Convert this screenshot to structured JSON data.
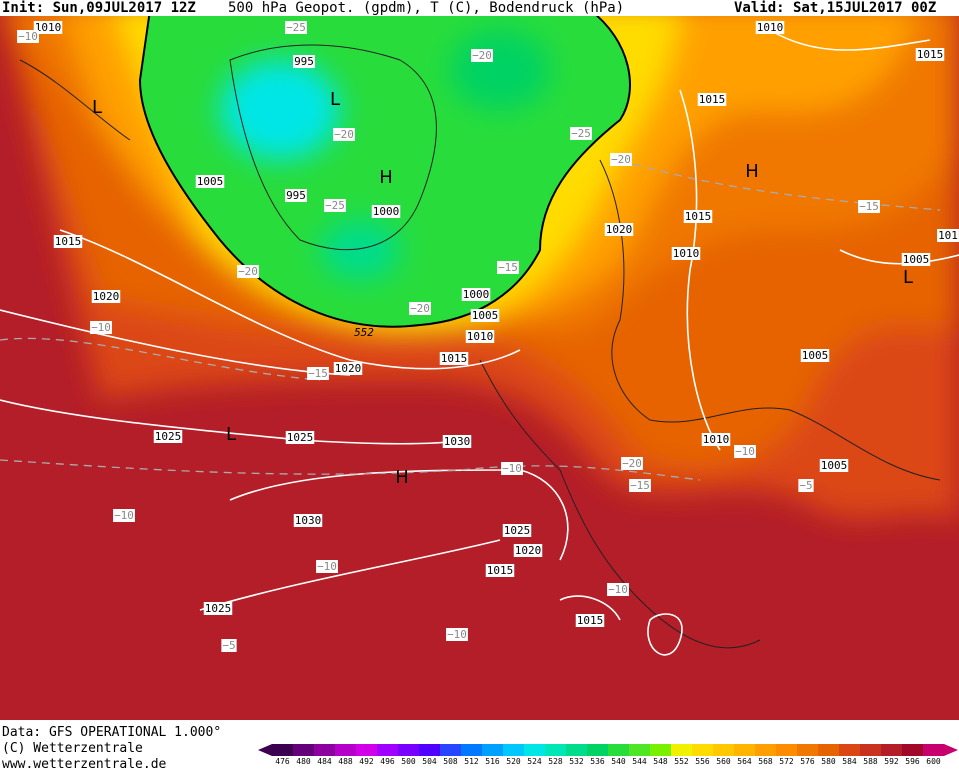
{
  "header": {
    "init": "Init: Sun,09JUL2017 12Z",
    "title": "500 hPa Geopot. (gpdm), T (C), Bodendruck (hPa)",
    "valid": "Valid: Sat,15JUL2017 00Z"
  },
  "footer": {
    "data": "Data: GFS OPERATIONAL 1.000°",
    "copyright": "(C) Wetterzentrale",
    "url": "www.wetterzentrale.de"
  },
  "map": {
    "pressure_labels": [
      "1010",
      "1010",
      "1015",
      "1015",
      "995",
      "1005",
      "995",
      "1000",
      "1015",
      "1020",
      "1010",
      "1015",
      "1005",
      "1020",
      "1000",
      "1005",
      "1010",
      "1015",
      "1020",
      "1005",
      "1025",
      "1025",
      "1030",
      "1010",
      "1005",
      "1030",
      "1025",
      "1020",
      "1015",
      "1025",
      "1015",
      "101"
    ],
    "temperature_labels": [
      "−10",
      "−25",
      "−20",
      "−20",
      "−25",
      "−20",
      "−25",
      "−15",
      "−20",
      "−15",
      "−10",
      "−20",
      "−15",
      "−10",
      "−20",
      "−10",
      "−15",
      "−5",
      "−10",
      "−10",
      "−10",
      "−10",
      "−5"
    ],
    "contour_label": "552",
    "centers": [
      "L",
      "L",
      "H",
      "H",
      "L",
      "L",
      "H"
    ]
  },
  "colorbar": {
    "ticks": [
      476,
      480,
      484,
      488,
      492,
      496,
      500,
      504,
      508,
      512,
      516,
      520,
      524,
      528,
      532,
      536,
      540,
      544,
      548,
      552,
      556,
      560,
      564,
      568,
      572,
      576,
      580,
      584,
      588,
      592,
      596,
      600
    ],
    "colors": [
      "#3c0050",
      "#64007a",
      "#8c00a0",
      "#b400c8",
      "#d200e6",
      "#a000ff",
      "#7800ff",
      "#5000ff",
      "#2846ff",
      "#0078ff",
      "#00a0ff",
      "#00c8ff",
      "#00e6e6",
      "#00e6b4",
      "#00dc8c",
      "#00d264",
      "#28dc3c",
      "#50e628",
      "#78f000",
      "#f0f000",
      "#ffdc00",
      "#ffc800",
      "#ffb400",
      "#ffa000",
      "#ff8c00",
      "#f07800",
      "#e66400",
      "#dc4614",
      "#c8321e",
      "#b41e28",
      "#a00a28",
      "#c8006e"
    ]
  }
}
